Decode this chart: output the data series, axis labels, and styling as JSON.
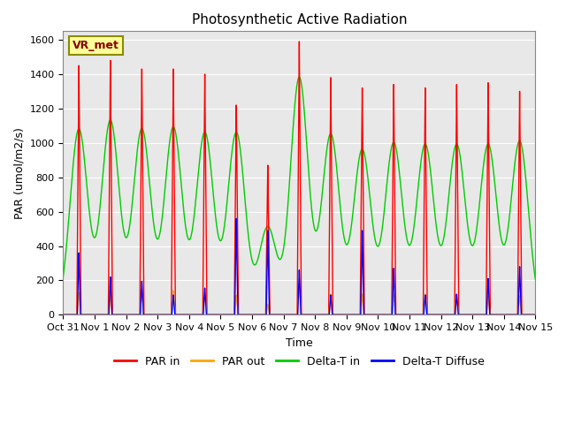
{
  "title": "Photosynthetic Active Radiation",
  "ylabel": "PAR (umol/m2/s)",
  "xlabel": "Time",
  "xlim_days": [
    0,
    15
  ],
  "ylim": [
    0,
    1650
  ],
  "yticks": [
    0,
    200,
    400,
    600,
    800,
    1000,
    1200,
    1400,
    1600
  ],
  "xtick_labels": [
    "Oct 31",
    "Nov 1",
    "Nov 2",
    "Nov 3",
    "Nov 4",
    "Nov 5",
    "Nov 6",
    "Nov 7",
    "Nov 8",
    "Nov 9",
    "Nov 10",
    "Nov 11",
    "Nov 12",
    "Nov 13",
    "Nov 14",
    "Nov 15"
  ],
  "xtick_positions": [
    0,
    1,
    2,
    3,
    4,
    5,
    6,
    7,
    8,
    9,
    10,
    11,
    12,
    13,
    14,
    15
  ],
  "colors": {
    "PAR_in": "#FF0000",
    "PAR_out": "#FFA500",
    "Delta_T_in": "#00CC00",
    "Delta_T_Diffuse": "#0000FF"
  },
  "legend_label_box": "VR_met",
  "background_color": "#E8E8E8",
  "fig_background": "#FFFFFF",
  "day_peaks_PAR_in": [
    1450,
    1480,
    1430,
    1430,
    1400,
    1220,
    870,
    1590,
    1380,
    1320,
    1340,
    1320,
    1340,
    1350,
    1300
  ],
  "day_peaks_PAR_out": [
    130,
    120,
    140,
    140,
    130,
    115,
    60,
    170,
    120,
    120,
    120,
    120,
    115,
    110,
    110
  ],
  "day_peaks_Delta_T_in": [
    1080,
    1130,
    1080,
    1090,
    1060,
    1060,
    510,
    1380,
    1050,
    960,
    1000,
    990,
    990,
    990,
    1010
  ],
  "day_peaks_Delta_T_D": [
    360,
    220,
    195,
    115,
    155,
    560,
    490,
    260,
    115,
    490,
    270,
    115,
    120,
    210,
    280
  ]
}
